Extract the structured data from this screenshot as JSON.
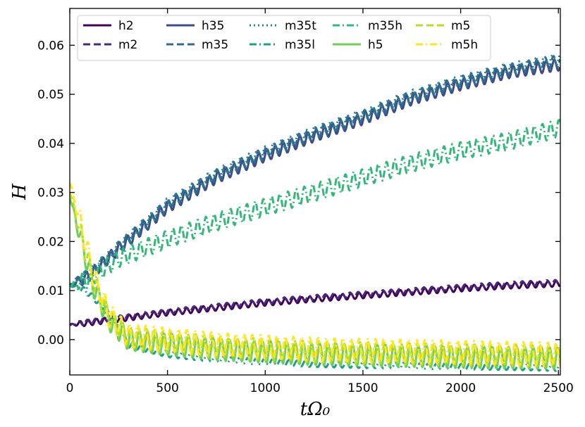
{
  "chart_data": {
    "type": "line",
    "xlabel": "tΩ₀",
    "ylabel": "H",
    "xlim": [
      0,
      2510
    ],
    "ylim": [
      -0.0072,
      0.0675
    ],
    "xticks": [
      0,
      500,
      1000,
      1500,
      2000,
      2500
    ],
    "xtick_labels": [
      "0",
      "500",
      "1000",
      "1500",
      "2000",
      "2500"
    ],
    "yticks": [
      0.0,
      0.01,
      0.02,
      0.03,
      0.04,
      0.05,
      0.06
    ],
    "ytick_labels": [
      "0.00",
      "0.01",
      "0.02",
      "0.03",
      "0.04",
      "0.05",
      "0.06"
    ],
    "legend_position": "top",
    "legend_columns": 5,
    "grid": false,
    "series": [
      {
        "name": "h2",
        "color": "#440154",
        "dash": "solid",
        "points": [
          [
            0,
            0.003
          ],
          [
            250,
            0.0042
          ],
          [
            500,
            0.0055
          ],
          [
            750,
            0.0065
          ],
          [
            1000,
            0.0075
          ],
          [
            1250,
            0.0083
          ],
          [
            1500,
            0.009
          ],
          [
            1750,
            0.0097
          ],
          [
            2000,
            0.0104
          ],
          [
            2250,
            0.011
          ],
          [
            2500,
            0.0114
          ]
        ],
        "osc_amp": 0.0006
      },
      {
        "name": "m2",
        "color": "#482878",
        "dash": "dashed",
        "points": [
          [
            0,
            0.0031
          ],
          [
            250,
            0.0044
          ],
          [
            500,
            0.0057
          ],
          [
            750,
            0.0068
          ],
          [
            1000,
            0.0078
          ],
          [
            1250,
            0.0086
          ],
          [
            1500,
            0.0093
          ],
          [
            1750,
            0.01
          ],
          [
            2000,
            0.0107
          ],
          [
            2250,
            0.0113
          ],
          [
            2500,
            0.0117
          ]
        ],
        "osc_amp": 0.0005
      },
      {
        "name": "h35",
        "color": "#3e4a89",
        "dash": "solid",
        "points": [
          [
            0,
            0.011
          ],
          [
            100,
            0.013
          ],
          [
            250,
            0.0185
          ],
          [
            500,
            0.027
          ],
          [
            750,
            0.033
          ],
          [
            1000,
            0.0375
          ],
          [
            1250,
            0.0415
          ],
          [
            1500,
            0.045
          ],
          [
            1750,
            0.049
          ],
          [
            2000,
            0.052
          ],
          [
            2250,
            0.0545
          ],
          [
            2500,
            0.056
          ]
        ],
        "osc_amp": 0.0012
      },
      {
        "name": "m35",
        "color": "#31688e",
        "dash": "dashed",
        "points": [
          [
            0,
            0.0112
          ],
          [
            100,
            0.0132
          ],
          [
            250,
            0.0188
          ],
          [
            500,
            0.0275
          ],
          [
            750,
            0.0335
          ],
          [
            1000,
            0.038
          ],
          [
            1250,
            0.042
          ],
          [
            1500,
            0.0455
          ],
          [
            1750,
            0.0495
          ],
          [
            2000,
            0.0525
          ],
          [
            2250,
            0.055
          ],
          [
            2500,
            0.0568
          ]
        ],
        "osc_amp": 0.0012
      },
      {
        "name": "m35t",
        "color": "#26828e",
        "dash": "dotted",
        "points": [
          [
            0,
            0.0113
          ],
          [
            100,
            0.0133
          ],
          [
            250,
            0.019
          ],
          [
            500,
            0.0278
          ],
          [
            750,
            0.0338
          ],
          [
            1000,
            0.0383
          ],
          [
            1250,
            0.0423
          ],
          [
            1500,
            0.0458
          ],
          [
            1750,
            0.0498
          ],
          [
            2000,
            0.0528
          ],
          [
            2250,
            0.0553
          ],
          [
            2500,
            0.0572
          ]
        ],
        "osc_amp": 0.0011
      },
      {
        "name": "m35l",
        "color": "#1f9e89",
        "dash": "dashdot",
        "points": [
          [
            0,
            0.011
          ],
          [
            80,
            0.01
          ],
          [
            150,
            0.0075
          ],
          [
            220,
            0.004
          ],
          [
            300,
            -0.001
          ],
          [
            500,
            -0.003
          ],
          [
            750,
            -0.004
          ],
          [
            1000,
            -0.0045
          ],
          [
            1250,
            -0.005
          ],
          [
            1500,
            -0.0052
          ],
          [
            1750,
            -0.0053
          ],
          [
            2000,
            -0.0055
          ],
          [
            2250,
            -0.0056
          ],
          [
            2500,
            -0.0058
          ]
        ],
        "osc_amp": 0.0006
      },
      {
        "name": "m35h",
        "color": "#35b779",
        "dash": "dashdot",
        "points": [
          [
            0,
            0.011
          ],
          [
            100,
            0.0125
          ],
          [
            250,
            0.0165
          ],
          [
            500,
            0.0205
          ],
          [
            750,
            0.024
          ],
          [
            1000,
            0.027
          ],
          [
            1250,
            0.03
          ],
          [
            1500,
            0.033
          ],
          [
            1750,
            0.036
          ],
          [
            2000,
            0.0385
          ],
          [
            2250,
            0.0405
          ],
          [
            2500,
            0.043
          ]
        ],
        "osc_amp": 0.0018
      },
      {
        "name": "h5",
        "color": "#6ece58",
        "dash": "solid",
        "points": [
          [
            0,
            0.029
          ],
          [
            60,
            0.02
          ],
          [
            120,
            0.011
          ],
          [
            200,
            0.004
          ],
          [
            300,
            0.0
          ],
          [
            500,
            -0.001
          ],
          [
            750,
            -0.002
          ],
          [
            1000,
            -0.0025
          ],
          [
            1250,
            -0.003
          ],
          [
            1500,
            -0.0032
          ],
          [
            1750,
            -0.0034
          ],
          [
            2000,
            -0.0036
          ],
          [
            2250,
            -0.0037
          ],
          [
            2500,
            -0.0038
          ]
        ],
        "osc_amp": 0.0022
      },
      {
        "name": "m5",
        "color": "#b5de2b",
        "dash": "dashed",
        "points": [
          [
            0,
            0.03
          ],
          [
            60,
            0.021
          ],
          [
            120,
            0.012
          ],
          [
            200,
            0.0045
          ],
          [
            300,
            0.0005
          ],
          [
            500,
            -0.0005
          ],
          [
            750,
            -0.0015
          ],
          [
            1000,
            -0.002
          ],
          [
            1250,
            -0.0025
          ],
          [
            1500,
            -0.0027
          ],
          [
            1750,
            -0.0029
          ],
          [
            2000,
            -0.0031
          ],
          [
            2250,
            -0.0033
          ],
          [
            2500,
            -0.0034
          ]
        ],
        "osc_amp": 0.0022
      },
      {
        "name": "m5h",
        "color": "#fde725",
        "dash": "dashdot",
        "points": [
          [
            0,
            0.032
          ],
          [
            60,
            0.023
          ],
          [
            120,
            0.013
          ],
          [
            200,
            0.005
          ],
          [
            300,
            0.0008
          ],
          [
            500,
            0.0
          ],
          [
            750,
            -0.001
          ],
          [
            1000,
            -0.0015
          ],
          [
            1250,
            -0.002
          ],
          [
            1500,
            -0.0022
          ],
          [
            1750,
            -0.0024
          ],
          [
            2000,
            -0.0026
          ],
          [
            2250,
            -0.0028
          ],
          [
            2500,
            -0.003
          ]
        ],
        "osc_amp": 0.0024
      }
    ]
  },
  "legend": {
    "rows": [
      [
        "h2",
        "h35",
        "m35t",
        "m35h",
        "m5"
      ],
      [
        "m2",
        "m35",
        "m35l",
        "h5",
        "m5h"
      ]
    ]
  }
}
